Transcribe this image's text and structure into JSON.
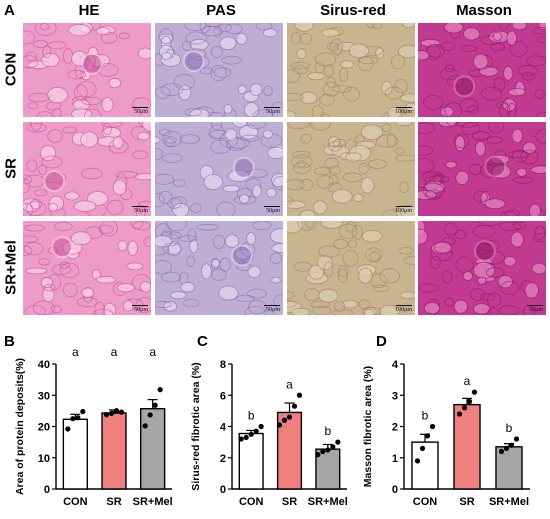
{
  "panel_a": {
    "letter": "A",
    "columns": [
      "HE",
      "PAS",
      "Sirus-red",
      "Masson"
    ],
    "rows": [
      "CON",
      "SR",
      "SR+Mel"
    ],
    "scale_bars": [
      [
        "50μm",
        "50μm",
        "100μm",
        ""
      ],
      [
        "50μm",
        "50μm",
        "100μm",
        ""
      ],
      [
        "50μm",
        "50μm",
        "100μm",
        "50μm"
      ]
    ],
    "stain_colors": {
      "HE": "#e98bc0",
      "PAS": "#b8a6d1",
      "Sirus-red": "#c9b48f",
      "Masson": "#c63d93"
    }
  },
  "chart_data": [
    {
      "type": "bar",
      "panel": "B",
      "categories": [
        "CON",
        "SR",
        "SR+Mel"
      ],
      "values": [
        22.3,
        24.3,
        25.7
      ],
      "errors": [
        1.6,
        1.0,
        2.9
      ],
      "points": [
        [
          19.2,
          22.5,
          22.8,
          24.8
        ],
        [
          23.8,
          24.2,
          25.1,
          24.6
        ],
        [
          20.2,
          23.7,
          26.8,
          31.8
        ]
      ],
      "letters": [
        "a",
        "a",
        "a"
      ],
      "bar_colors": [
        "#ffffff",
        "#f08080",
        "#a6a6a6"
      ],
      "ylabel": "Area of protein deposits(%)",
      "xlabel": "",
      "ylim": [
        0,
        40
      ],
      "yticks": [
        0,
        10,
        20,
        30,
        40
      ]
    },
    {
      "type": "bar",
      "panel": "C",
      "categories": [
        "CON",
        "SR",
        "SR+Mel"
      ],
      "values": [
        3.55,
        4.9,
        2.55
      ],
      "errors": [
        0.2,
        0.6,
        0.3
      ],
      "points": [
        [
          3.2,
          3.3,
          3.5,
          3.7,
          4.0
        ],
        [
          4.1,
          4.4,
          4.6,
          5.3,
          6.0
        ],
        [
          2.2,
          2.4,
          2.5,
          2.7,
          3.0
        ]
      ],
      "letters": [
        "b",
        "a",
        "b"
      ],
      "bar_colors": [
        "#ffffff",
        "#f08080",
        "#a6a6a6"
      ],
      "ylabel": "Sirus-red fibrotic area (%)",
      "xlabel": "",
      "ylim": [
        0,
        8
      ],
      "yticks": [
        0,
        2,
        4,
        6,
        8
      ]
    },
    {
      "type": "bar",
      "panel": "D",
      "categories": [
        "CON",
        "SR",
        "SR+Mel"
      ],
      "values": [
        1.5,
        2.7,
        1.35
      ],
      "errors": [
        0.25,
        0.2,
        0.1
      ],
      "points": [
        [
          0.9,
          1.3,
          1.7,
          2.0
        ],
        [
          2.4,
          2.6,
          2.8,
          3.1
        ],
        [
          1.2,
          1.3,
          1.4,
          1.6
        ]
      ],
      "letters": [
        "b",
        "a",
        "b"
      ],
      "bar_colors": [
        "#ffffff",
        "#f08080",
        "#a6a6a6"
      ],
      "ylabel": "Masson fibrotic area (%)",
      "xlabel": "",
      "ylim": [
        0,
        4
      ],
      "yticks": [
        0,
        1,
        2,
        3,
        4
      ]
    }
  ]
}
